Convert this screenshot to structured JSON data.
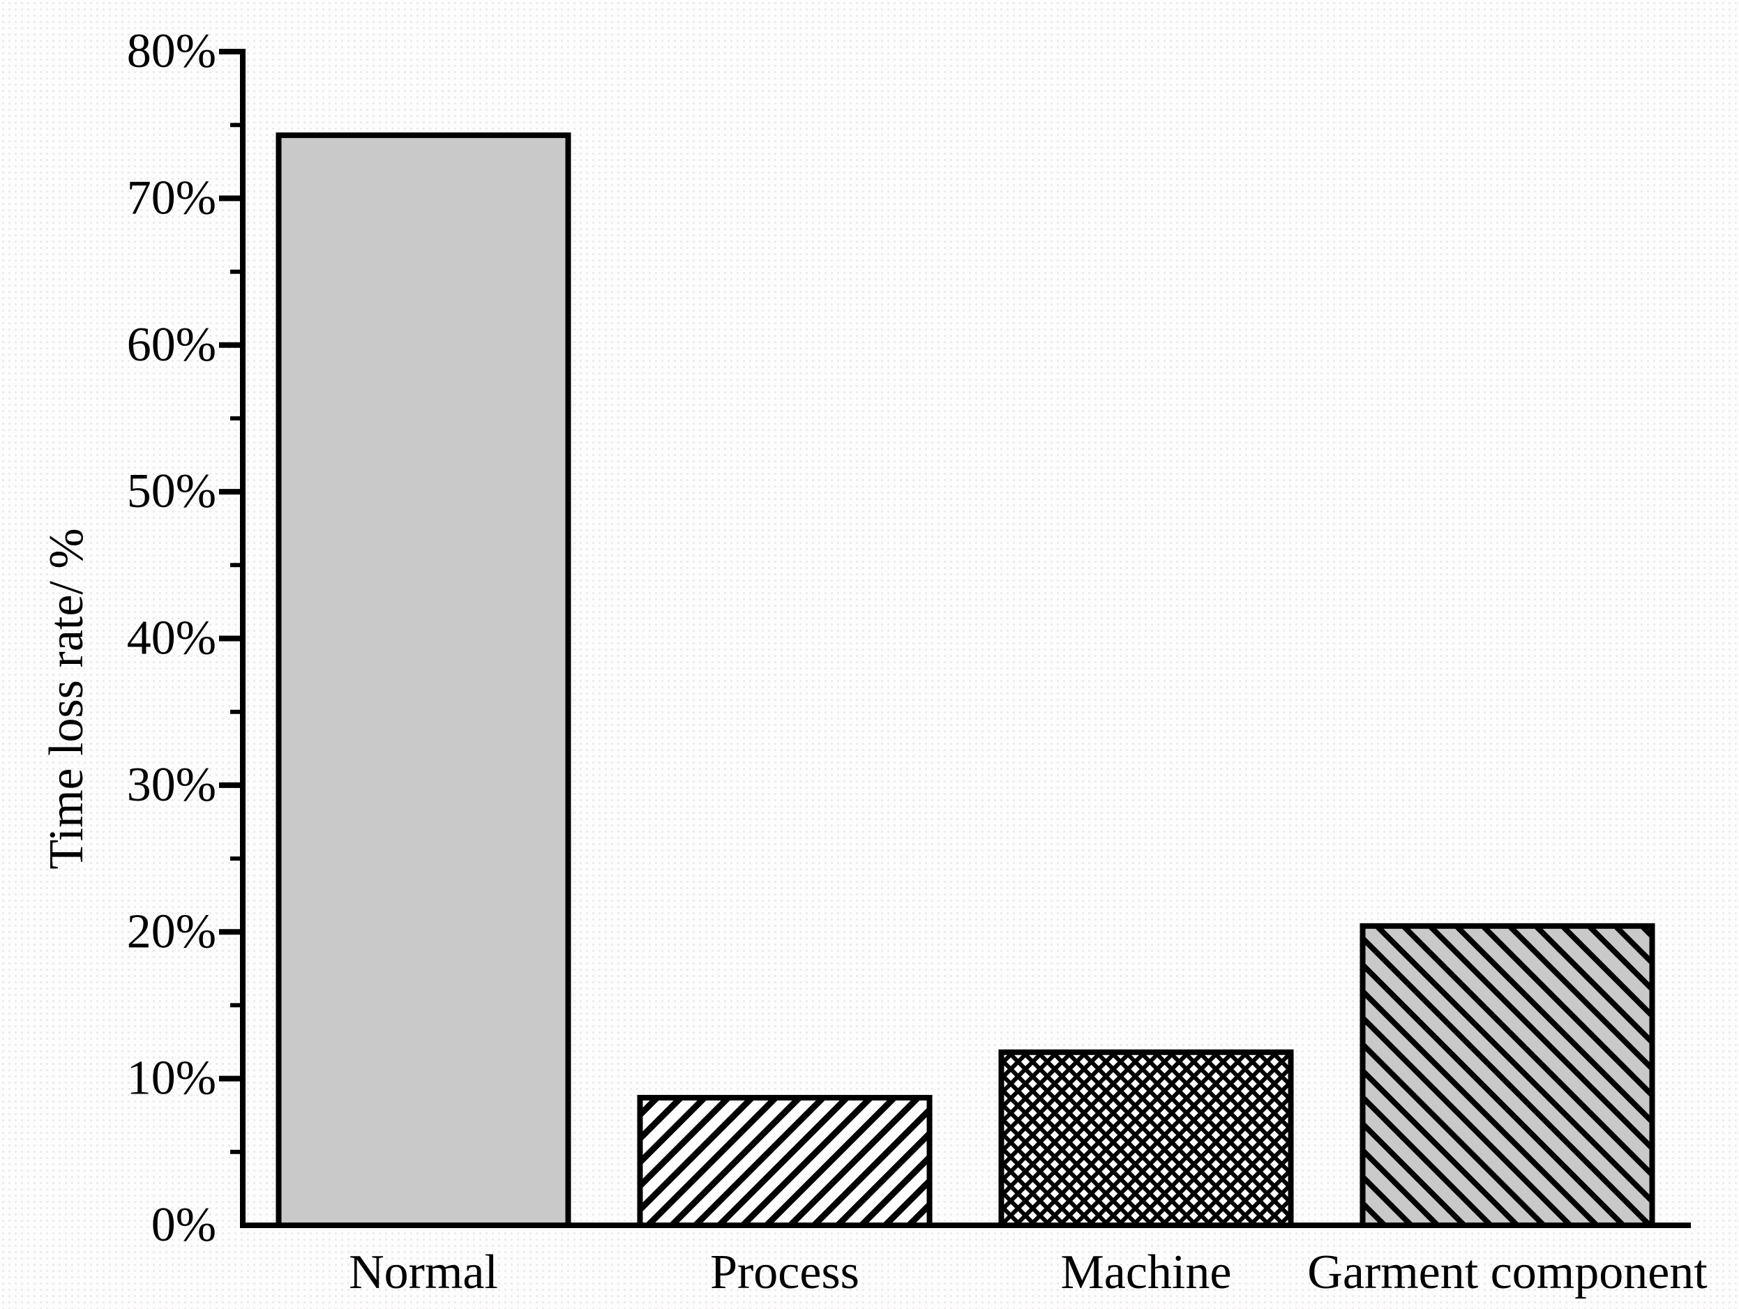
{
  "chart_data": {
    "type": "bar",
    "title": "",
    "xlabel": "",
    "ylabel": "Time loss rate/ %",
    "categories": [
      "Normal",
      "Process",
      "Machine",
      "Garment component"
    ],
    "values": [
      74.3,
      8.7,
      11.8,
      20.4
    ],
    "value_unit": "%",
    "ylim": [
      0,
      80
    ],
    "ytick_step": 10,
    "ytick_minor_step": 5,
    "ytick_labels": [
      "0%",
      "10%",
      "20%",
      "30%",
      "40%",
      "50%",
      "60%",
      "70%",
      "80%"
    ],
    "grid": false,
    "legend": "none",
    "axis_style": "left-and-bottom-only",
    "bar_styles": [
      {
        "category": "Normal",
        "fill": "#c9c9c9",
        "hatch": "none"
      },
      {
        "category": "Process",
        "fill": "#ffffff",
        "hatch": "forward-diagonal"
      },
      {
        "category": "Machine",
        "fill": "#ffffff",
        "hatch": "cross-diagonal"
      },
      {
        "category": "Garment component",
        "fill": "#c9c9c9",
        "hatch": "backward-diagonal"
      }
    ],
    "colors": {
      "axis_line": "#000000",
      "bar_border": "#000000",
      "text": "#000000",
      "bar_gray": "#c9c9c9",
      "background": "#fdfdfd"
    }
  }
}
